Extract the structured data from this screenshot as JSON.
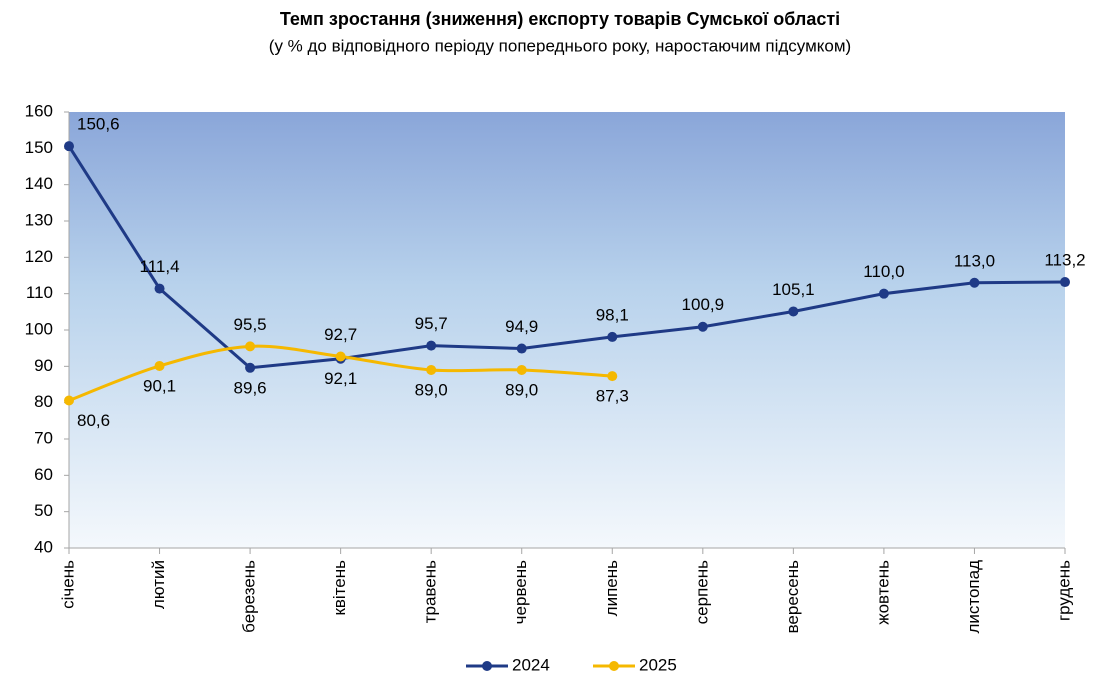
{
  "chart_data": {
    "type": "line",
    "title": "Темп зростання (зниження) експорту товарів Сумської області",
    "subtitle": "(у % до відповідного періоду попереднього року, наростаючим підсумком)",
    "categories": [
      "січень",
      "лютий",
      "березень",
      "квітень",
      "травень",
      "червень",
      "липень",
      "серпень",
      "вересень",
      "жовтень",
      "листопад",
      "грудень"
    ],
    "series": [
      {
        "name": "2024",
        "color": "#1f3a86",
        "smooth": false,
        "values": [
          150.6,
          111.4,
          89.6,
          92.1,
          95.7,
          94.9,
          98.1,
          100.9,
          105.1,
          110.0,
          113.0,
          113.2
        ],
        "value_labels": [
          "150,6",
          "111,4",
          "89,6",
          "92,1",
          "95,7",
          "94,9",
          "98,1",
          "100,9",
          "105,1",
          "110,0",
          "113,0",
          "113,2"
        ]
      },
      {
        "name": "2025",
        "color": "#f5b800",
        "smooth": true,
        "values": [
          80.6,
          90.1,
          95.5,
          92.7,
          89.0,
          89.0,
          87.3,
          null,
          null,
          null,
          null,
          null
        ],
        "value_labels": [
          "80,6",
          "90,1",
          "95,5",
          "92,7",
          "89,0",
          "89,0",
          "87,3",
          null,
          null,
          null,
          null,
          null
        ]
      }
    ],
    "ylim": [
      40,
      160
    ],
    "yticks": [
      40,
      50,
      60,
      70,
      80,
      90,
      100,
      110,
      120,
      130,
      140,
      150,
      160
    ],
    "grid": false,
    "legend": "bottom"
  }
}
